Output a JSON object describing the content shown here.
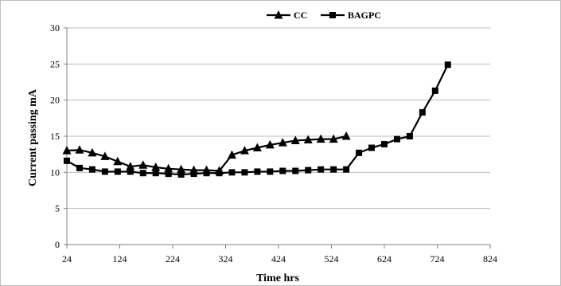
{
  "chart_data": {
    "type": "line",
    "title": "",
    "xlabel": "Time  hrs",
    "ylabel": "Current passing mA",
    "xlim": [
      24,
      824
    ],
    "ylim": [
      0,
      30
    ],
    "x_ticks": [
      24,
      124,
      224,
      324,
      424,
      524,
      624,
      724,
      824
    ],
    "y_ticks": [
      0,
      5,
      10,
      15,
      20,
      25,
      30
    ],
    "grid": "horizontal",
    "legend": "top-center",
    "series": [
      {
        "name": "CC",
        "marker": "triangle",
        "color": "#000000",
        "x": [
          24,
          48,
          72,
          96,
          120,
          144,
          168,
          192,
          216,
          240,
          264,
          288,
          312,
          336,
          360,
          384,
          408,
          432,
          456,
          480,
          504,
          528,
          552
        ],
        "y": [
          13.0,
          13.1,
          12.7,
          12.2,
          11.5,
          10.8,
          11.0,
          10.7,
          10.5,
          10.4,
          10.3,
          10.3,
          10.2,
          12.4,
          13.0,
          13.4,
          13.8,
          14.1,
          14.4,
          14.5,
          14.6,
          14.6,
          15.0
        ]
      },
      {
        "name": "BAGPC",
        "marker": "square",
        "color": "#000000",
        "x": [
          24,
          48,
          72,
          96,
          120,
          144,
          168,
          192,
          216,
          240,
          264,
          288,
          312,
          336,
          360,
          384,
          408,
          432,
          456,
          480,
          504,
          528,
          552,
          576,
          600,
          624,
          648,
          672,
          696,
          720,
          744
        ],
        "y": [
          11.6,
          10.6,
          10.4,
          10.1,
          10.1,
          10.1,
          9.9,
          9.9,
          9.8,
          9.7,
          9.8,
          9.9,
          9.9,
          10.0,
          10.0,
          10.1,
          10.1,
          10.2,
          10.2,
          10.3,
          10.4,
          10.4,
          10.4,
          12.7,
          13.4,
          13.9,
          14.6,
          15.0,
          18.3,
          21.3,
          24.9
        ]
      }
    ]
  }
}
